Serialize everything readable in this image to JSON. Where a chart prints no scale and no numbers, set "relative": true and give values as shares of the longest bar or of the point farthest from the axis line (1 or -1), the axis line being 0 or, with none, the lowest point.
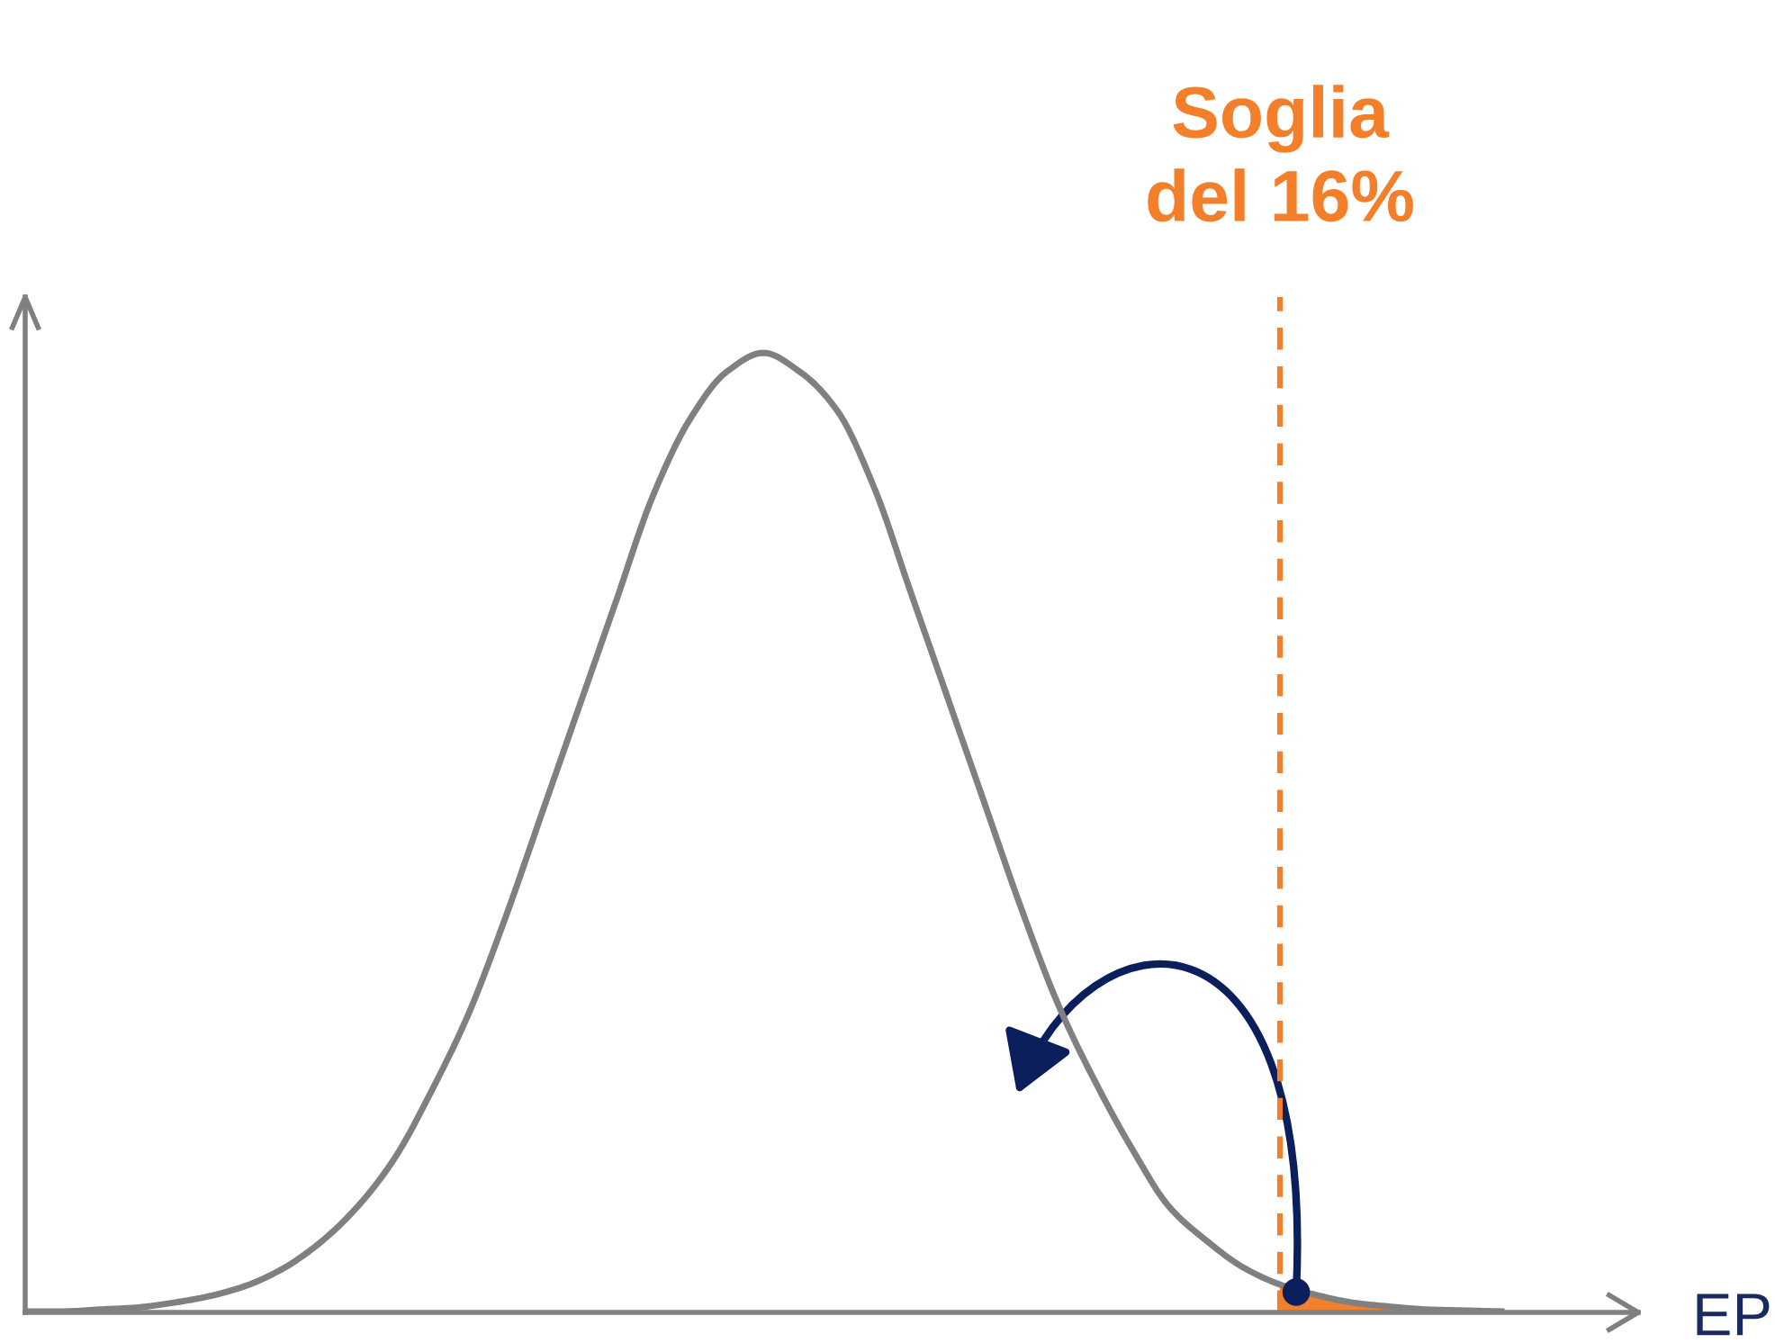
{
  "chart_data": {
    "type": "line",
    "relative": true,
    "xlabel": "EP",
    "annotations": [
      "Soglia\ndel 16%"
    ],
    "categories": [
      null,
      null,
      null,
      null,
      null,
      null,
      null,
      null,
      null,
      null,
      null,
      null,
      null,
      null,
      null,
      null,
      null,
      null,
      null,
      null,
      null,
      null,
      null,
      null,
      null,
      null,
      null,
      null,
      null,
      null,
      null,
      null,
      null,
      null,
      null,
      null,
      null,
      null,
      null,
      null,
      null
    ],
    "series": [
      {
        "color": "#808080",
        "values": [
          0.001,
          0.001,
          0.003,
          0.005,
          0.01,
          0.017,
          0.028,
          0.046,
          0.073,
          0.11,
          0.16,
          0.23,
          0.31,
          0.41,
          0.52,
          0.63,
          0.74,
          0.85,
          0.93,
          0.98,
          1.0,
          0.98,
          0.94,
          0.86,
          0.75,
          0.64,
          0.53,
          0.42,
          0.32,
          0.24,
          0.17,
          0.11,
          0.075,
          0.047,
          0.029,
          0.018,
          0.01,
          0.006,
          0.003,
          0.002,
          0.001
        ]
      },
      {
        "type": "area",
        "color": "#f47f2a",
        "values": [
          null,
          null,
          null,
          null,
          null,
          null,
          null,
          null,
          null,
          null,
          null,
          null,
          null,
          null,
          null,
          null,
          null,
          null,
          null,
          null,
          null,
          null,
          null,
          null,
          null,
          null,
          null,
          null,
          null,
          null,
          null,
          null,
          null,
          null,
          0.029,
          0.018,
          0.01,
          0.006,
          0.003,
          0.002,
          0.001
        ]
      }
    ]
  }
}
